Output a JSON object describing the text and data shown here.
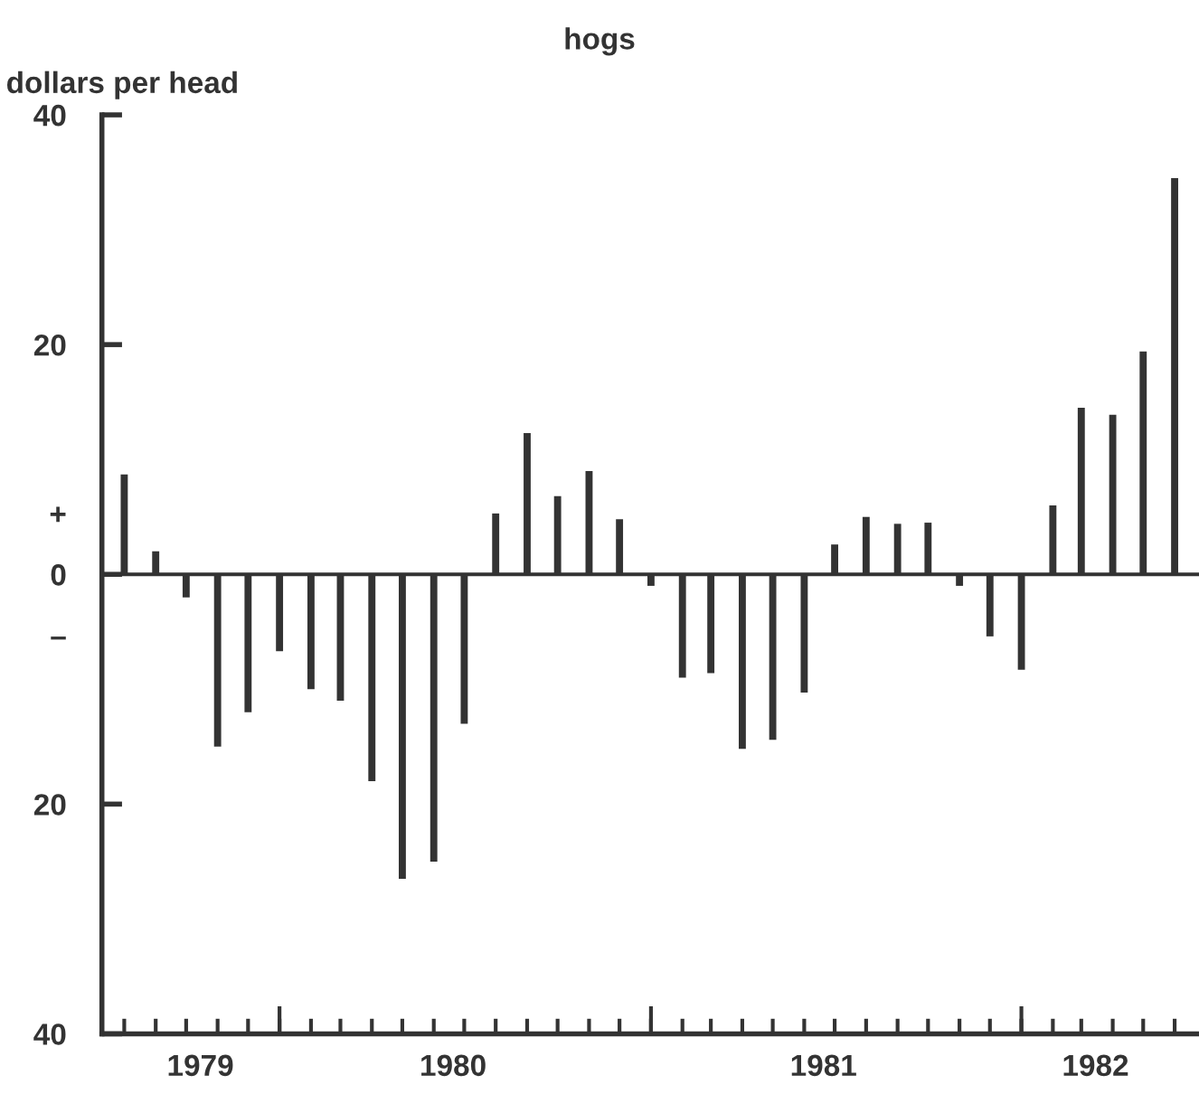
{
  "chart_data": {
    "type": "bar",
    "title": "hogs",
    "ylabel": "dollars per head",
    "color": "#333333",
    "x": [
      "1979-08",
      "1979-09",
      "1979-10",
      "1979-11",
      "1979-12",
      "1980-01",
      "1980-02",
      "1980-03",
      "1980-04",
      "1980-05",
      "1980-06",
      "1980-07",
      "1980-08",
      "1980-09",
      "1980-10",
      "1980-11",
      "1980-12",
      "1981-01",
      "1981-02",
      "1981-03",
      "1981-04",
      "1981-05",
      "1981-06",
      "1981-07",
      "1981-08",
      "1981-09",
      "1981-10",
      "1981-11",
      "1981-12",
      "1982-01",
      "1982-02",
      "1982-03",
      "1982-04",
      "1982-05",
      "1982-06"
    ],
    "values": [
      8.7,
      2,
      -2,
      -15,
      -12,
      -6.7,
      -10,
      -11,
      -18,
      -26.5,
      -25,
      -13,
      5.3,
      12.3,
      6.8,
      9,
      4.8,
      -1,
      -9,
      -8.6,
      -15.2,
      -14.4,
      -10.3,
      2.6,
      5,
      4.4,
      4.5,
      -1,
      -5.4,
      -8.3,
      6,
      14.5,
      13.9,
      19.4,
      34.5
    ],
    "xlim": [
      "1979-07-10",
      "1982-06-25"
    ],
    "xticks": [
      {
        "value": "1979-08",
        "label": null
      },
      {
        "value": "1979-09",
        "label": null
      },
      {
        "value": "1979-10",
        "label": null
      },
      {
        "value": "1979-11",
        "label": null
      },
      {
        "value": "1979-12",
        "label": null
      },
      {
        "value": "1980-01",
        "label": null
      },
      {
        "value": "1980-02",
        "label": null
      },
      {
        "value": "1980-03",
        "label": null
      },
      {
        "value": "1980-04",
        "label": null
      },
      {
        "value": "1980-05",
        "label": null
      },
      {
        "value": "1980-06",
        "label": null
      },
      {
        "value": "1980-07",
        "label": null
      },
      {
        "value": "1980-08",
        "label": null
      },
      {
        "value": "1980-09",
        "label": null
      },
      {
        "value": "1980-10",
        "label": null
      },
      {
        "value": "1980-11",
        "label": null
      },
      {
        "value": "1980-12",
        "label": null
      },
      {
        "value": "1981-01",
        "label": null
      },
      {
        "value": "1981-02",
        "label": null
      },
      {
        "value": "1981-03",
        "label": null
      },
      {
        "value": "1981-04",
        "label": null
      },
      {
        "value": "1981-05",
        "label": null
      },
      {
        "value": "1981-06",
        "label": null
      },
      {
        "value": "1981-07",
        "label": null
      },
      {
        "value": "1981-08",
        "label": null
      },
      {
        "value": "1981-09",
        "label": null
      },
      {
        "value": "1981-10",
        "label": null
      },
      {
        "value": "1981-11",
        "label": null
      },
      {
        "value": "1981-12",
        "label": null
      },
      {
        "value": "1982-01",
        "label": null
      },
      {
        "value": "1982-02",
        "label": null
      },
      {
        "value": "1982-03",
        "label": null
      },
      {
        "value": "1982-04",
        "label": null
      },
      {
        "value": "1982-05",
        "label": null
      },
      {
        "value": "1982-06",
        "label": null
      },
      {
        "value": "1979-10-15",
        "label": "1979"
      },
      {
        "value": "1980-06-20",
        "label": "1980"
      },
      {
        "value": "1981-06-20",
        "label": "1981"
      },
      {
        "value": "1982-03-15",
        "label": "1982"
      }
    ],
    "ylim": [
      -40,
      40
    ],
    "yticks": [
      {
        "value": 40,
        "label": "40"
      },
      {
        "value": 20,
        "label": "20"
      },
      {
        "value": 5.3,
        "label": "+"
      },
      {
        "value": 0,
        "label": "0"
      },
      {
        "value": -5.3,
        "label": "–"
      },
      {
        "value": -20,
        "label": "20"
      },
      {
        "value": -40,
        "label": "40"
      }
    ],
    "ref_lines": [
      {
        "axis": "y",
        "value": 0,
        "label": null
      }
    ],
    "grid": false,
    "legend": false
  }
}
